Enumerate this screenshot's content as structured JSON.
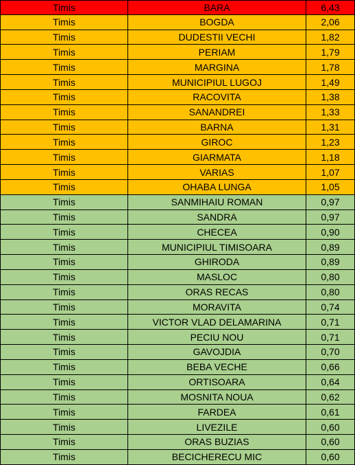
{
  "table": {
    "rows": [
      [
        "Timis",
        "BARA",
        "6,43"
      ],
      [
        "Timis",
        "BOGDA",
        "2,06"
      ],
      [
        "Timis",
        "DUDESTII VECHI",
        "1,82"
      ],
      [
        "Timis",
        "PERIAM",
        "1,79"
      ],
      [
        "Timis",
        "MARGINA",
        "1,78"
      ],
      [
        "Timis",
        "MUNICIPIUL LUGOJ",
        "1,49"
      ],
      [
        "Timis",
        "RACOVITA",
        "1,38"
      ],
      [
        "Timis",
        "SANANDREI",
        "1,33"
      ],
      [
        "Timis",
        "BARNA",
        "1,31"
      ],
      [
        "Timis",
        "GIROC",
        "1,23"
      ],
      [
        "Timis",
        "GIARMATA",
        "1,18"
      ],
      [
        "Timis",
        "VARIAS",
        "1,07"
      ],
      [
        "Timis",
        "OHABA LUNGA",
        "1,05"
      ],
      [
        "Timis",
        "SANMIHAIU ROMAN",
        "0,97"
      ],
      [
        "Timis",
        "SANDRA",
        "0,97"
      ],
      [
        "Timis",
        "CHECEA",
        "0,90"
      ],
      [
        "Timis",
        "MUNICIPIUL TIMISOARA",
        "0,89"
      ],
      [
        "Timis",
        "GHIRODA",
        "0,89"
      ],
      [
        "Timis",
        "MASLOC",
        "0,80"
      ],
      [
        "Timis",
        "ORAS RECAS",
        "0,80"
      ],
      [
        "Timis",
        "MORAVITA",
        "0,74"
      ],
      [
        "Timis",
        "VICTOR VLAD DELAMARINA",
        "0,71"
      ],
      [
        "Timis",
        "PECIU NOU",
        "0,71"
      ],
      [
        "Timis",
        "GAVOJDIA",
        "0,70"
      ],
      [
        "Timis",
        "BEBA VECHE",
        "0,66"
      ],
      [
        "Timis",
        "ORTISOARA",
        "0,64"
      ],
      [
        "Timis",
        "MOSNITA NOUA",
        "0,62"
      ],
      [
        "Timis",
        "FARDEA",
        "0,61"
      ],
      [
        "Timis",
        "LIVEZILE",
        "0,60"
      ],
      [
        "Timis",
        "ORAS BUZIAS",
        "0,60"
      ],
      [
        "Timis",
        "BECICHERECU MIC",
        "0,60"
      ]
    ]
  }
}
